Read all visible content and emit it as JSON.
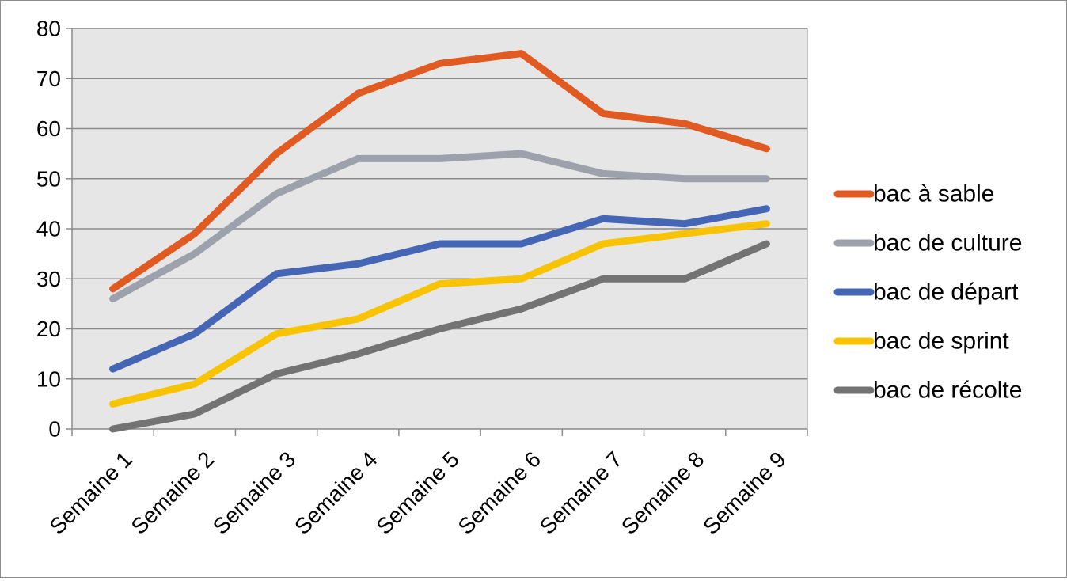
{
  "chart_data": {
    "type": "line",
    "title": "",
    "xlabel": "",
    "ylabel": "",
    "categories": [
      "Semaine 1",
      "Semaine 2",
      "Semaine 3",
      "Semaine 4",
      "Semaine 5",
      "Semaine 6",
      "Semaine 7",
      "Semaine 8",
      "Semaine 9"
    ],
    "ylim": [
      0,
      80
    ],
    "yticks": [
      "0",
      "10",
      "20",
      "30",
      "40",
      "50",
      "60",
      "70",
      "80"
    ],
    "grid": true,
    "legend_position": "right",
    "plot_background": "#e6e6e6",
    "series": [
      {
        "name": "bac à sable",
        "color": "#e05a22",
        "values": [
          28,
          39,
          55,
          67,
          73,
          75,
          63,
          61,
          56
        ]
      },
      {
        "name": "bac de culture",
        "color": "#9da1ac",
        "values": [
          26,
          35,
          47,
          54,
          54,
          55,
          51,
          50,
          50
        ]
      },
      {
        "name": "bac de départ",
        "color": "#4466b4",
        "values": [
          12,
          19,
          31,
          33,
          37,
          37,
          42,
          41,
          44
        ]
      },
      {
        "name": "bac de sprint",
        "color": "#f8c300",
        "values": [
          5,
          9,
          19,
          22,
          29,
          30,
          37,
          39,
          41
        ]
      },
      {
        "name": "bac de récolte",
        "color": "#737373",
        "values": [
          0,
          3,
          11,
          15,
          20,
          24,
          30,
          30,
          37
        ]
      }
    ]
  }
}
